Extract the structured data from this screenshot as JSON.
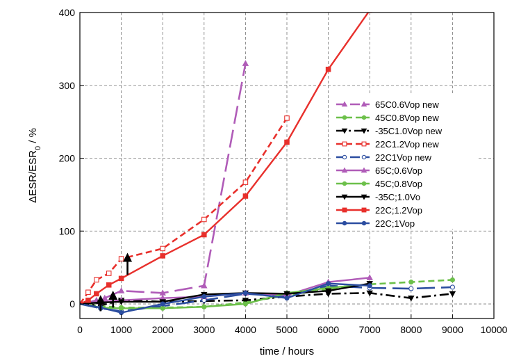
{
  "chart_data": {
    "type": "line",
    "title": "",
    "xlabel": "time  / hours",
    "ylabel": "ΔESR/ESR",
    "ylabel_sub": "0",
    "ylabel_unit": " / %",
    "xlim": [
      0,
      10000
    ],
    "ylim": [
      -20,
      400
    ],
    "xticks": [
      0,
      1000,
      2000,
      3000,
      4000,
      5000,
      6000,
      7000,
      8000,
      9000,
      10000
    ],
    "yticks": [
      0,
      100,
      200,
      300,
      400
    ],
    "grid": true,
    "legend_position": "right-center",
    "series": [
      {
        "name": "65C0.6Vop new",
        "color": "#b05cb8",
        "dash": "long",
        "marker": "triangle-up",
        "filled": true,
        "x": [
          0,
          200,
          400,
          600,
          1000,
          2000,
          3000,
          4000
        ],
        "y": [
          0,
          2,
          5,
          8,
          18,
          15,
          25,
          330
        ]
      },
      {
        "name": "45C0.8Vop new",
        "color": "#6cc04a",
        "dash": "dashed",
        "marker": "circle",
        "filled": true,
        "x": [
          0,
          500,
          1000,
          2000,
          3000,
          4000,
          5000,
          6000,
          7000,
          8000,
          9000
        ],
        "y": [
          0,
          -3,
          -5,
          -5,
          -4,
          2,
          12,
          20,
          27,
          30,
          33
        ]
      },
      {
        "name": "-35C1.0Vop new",
        "color": "#000000",
        "dash": "dashdot",
        "marker": "triangle-down",
        "filled": true,
        "x": [
          0,
          500,
          1000,
          2000,
          3000,
          4000,
          5000,
          6000,
          7000,
          8000,
          9000
        ],
        "y": [
          0,
          -2,
          5,
          3,
          4,
          5,
          10,
          14,
          15,
          8,
          14
        ]
      },
      {
        "name": "22C1.2Vop new",
        "color": "#e8302c",
        "dash": "dashed",
        "marker": "square",
        "filled": false,
        "x": [
          0,
          200,
          400,
          700,
          1000,
          2000,
          3000,
          4000,
          5000
        ],
        "y": [
          0,
          16,
          33,
          42,
          62,
          76,
          116,
          167,
          255
        ]
      },
      {
        "name": "22C1Vop new",
        "color": "#2b4da0",
        "dash": "long",
        "marker": "circle",
        "filled": false,
        "x": [
          0,
          500,
          1000,
          2000,
          3000,
          4000,
          5000,
          6000,
          7000,
          8000,
          9000
        ],
        "y": [
          0,
          -6,
          -10,
          -3,
          5,
          14,
          10,
          25,
          22,
          21,
          23
        ]
      },
      {
        "name": "65C;0.6Vop",
        "color": "#b05cb8",
        "dash": "solid",
        "marker": "triangle-up",
        "filled": true,
        "x": [
          0,
          500,
          1000,
          2000,
          3000,
          4000,
          5000,
          6000,
          7000
        ],
        "y": [
          0,
          3,
          5,
          8,
          10,
          15,
          12,
          30,
          36
        ]
      },
      {
        "name": "45C;0.8Vop",
        "color": "#6cc04a",
        "dash": "solid",
        "marker": "circle",
        "filled": true,
        "x": [
          0,
          500,
          1000,
          2000,
          3000,
          4000,
          5000,
          6000,
          7000
        ],
        "y": [
          0,
          -5,
          -6,
          -6,
          -4,
          0,
          15,
          22,
          27
        ]
      },
      {
        "name": "-35C;1.0Vo",
        "color": "#000000",
        "dash": "solid",
        "marker": "triangle-down",
        "filled": true,
        "x": [
          0,
          500,
          1000,
          2000,
          3000,
          4000,
          5000,
          6000,
          7000
        ],
        "y": [
          0,
          2,
          3,
          3,
          13,
          15,
          14,
          18,
          28
        ]
      },
      {
        "name": "22C;1.2Vop",
        "color": "#e8302c",
        "dash": "solid",
        "marker": "square",
        "filled": true,
        "x": [
          0,
          200,
          400,
          700,
          1000,
          2000,
          3000,
          4000,
          5000,
          6000,
          7000
        ],
        "y": [
          0,
          5,
          14,
          26,
          35,
          66,
          95,
          148,
          222,
          322,
          403
        ]
      },
      {
        "name": "22C;1Vop",
        "color": "#2b4da0",
        "dash": "solid",
        "marker": "circle",
        "filled": true,
        "x": [
          0,
          500,
          1000,
          2000,
          3000,
          4000,
          5000,
          6000,
          7000
        ],
        "y": [
          0,
          -5,
          -12,
          0,
          10,
          15,
          8,
          28,
          25
        ]
      }
    ],
    "annotations": [
      {
        "type": "arrow",
        "x": 500,
        "y_from": -10,
        "y_to": 6
      },
      {
        "type": "arrow",
        "x": 800,
        "y_from": -5,
        "y_to": 12
      },
      {
        "type": "arrow",
        "x": 1150,
        "y_from": 40,
        "y_to": 64
      }
    ]
  }
}
